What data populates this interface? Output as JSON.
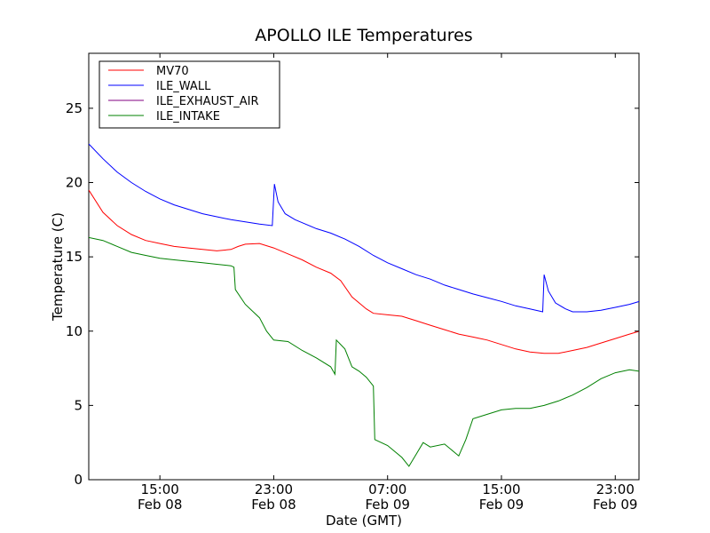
{
  "chart_data": {
    "type": "line",
    "title": "APOLLO ILE Temperatures",
    "xlabel": "Date (GMT)",
    "ylabel": "Temperature (C)",
    "xlim": [
      "Feb 08 10:00",
      "Feb 09 23:40"
    ],
    "ylim": [
      0,
      28.7
    ],
    "grid": false,
    "legend_position": "top-left",
    "x_ticks": [
      {
        "time": "15:00",
        "date": "Feb 08",
        "hours": 15
      },
      {
        "time": "23:00",
        "date": "Feb 08",
        "hours": 23
      },
      {
        "time": "07:00",
        "date": "Feb 09",
        "hours": 31
      },
      {
        "time": "15:00",
        "date": "Feb 09",
        "hours": 39
      },
      {
        "time": "23:00",
        "date": "Feb 09",
        "hours": 47
      }
    ],
    "y_ticks": [
      0,
      5,
      10,
      15,
      20,
      25
    ],
    "series": [
      {
        "name": "MV70",
        "color": "#ff0000",
        "points": [
          [
            10.0,
            19.5
          ],
          [
            11.0,
            18.0
          ],
          [
            12.0,
            17.1
          ],
          [
            13.0,
            16.5
          ],
          [
            14.0,
            16.1
          ],
          [
            15.0,
            15.9
          ],
          [
            16.0,
            15.7
          ],
          [
            17.0,
            15.6
          ],
          [
            18.0,
            15.5
          ],
          [
            19.0,
            15.4
          ],
          [
            20.0,
            15.5
          ],
          [
            20.5,
            15.7
          ],
          [
            21.0,
            15.85
          ],
          [
            22.0,
            15.9
          ],
          [
            23.0,
            15.6
          ],
          [
            24.0,
            15.2
          ],
          [
            25.0,
            14.8
          ],
          [
            26.0,
            14.3
          ],
          [
            27.0,
            13.9
          ],
          [
            27.7,
            13.4
          ],
          [
            28.5,
            12.3
          ],
          [
            29.5,
            11.5
          ],
          [
            30.0,
            11.2
          ],
          [
            31.0,
            11.1
          ],
          [
            32.0,
            11.0
          ],
          [
            33.0,
            10.7
          ],
          [
            34.0,
            10.4
          ],
          [
            35.0,
            10.1
          ],
          [
            36.0,
            9.8
          ],
          [
            37.0,
            9.6
          ],
          [
            38.0,
            9.4
          ],
          [
            39.0,
            9.1
          ],
          [
            40.0,
            8.8
          ],
          [
            41.0,
            8.6
          ],
          [
            42.0,
            8.5
          ],
          [
            43.0,
            8.5
          ],
          [
            44.0,
            8.7
          ],
          [
            45.0,
            8.9
          ],
          [
            46.0,
            9.2
          ],
          [
            47.0,
            9.5
          ],
          [
            48.0,
            9.8
          ],
          [
            48.7,
            10.0
          ]
        ]
      },
      {
        "name": "ILE_WALL",
        "color": "#0000ff",
        "points": [
          [
            10.0,
            22.6
          ],
          [
            11.0,
            21.6
          ],
          [
            12.0,
            20.7
          ],
          [
            13.0,
            20.0
          ],
          [
            14.0,
            19.4
          ],
          [
            15.0,
            18.9
          ],
          [
            16.0,
            18.5
          ],
          [
            17.0,
            18.2
          ],
          [
            18.0,
            17.9
          ],
          [
            19.0,
            17.7
          ],
          [
            20.0,
            17.5
          ],
          [
            21.0,
            17.35
          ],
          [
            22.0,
            17.2
          ],
          [
            22.9,
            17.1
          ],
          [
            23.05,
            19.9
          ],
          [
            23.3,
            18.7
          ],
          [
            23.8,
            17.9
          ],
          [
            24.5,
            17.5
          ],
          [
            25.0,
            17.3
          ],
          [
            26.0,
            16.9
          ],
          [
            27.0,
            16.6
          ],
          [
            28.0,
            16.2
          ],
          [
            29.0,
            15.7
          ],
          [
            30.0,
            15.1
          ],
          [
            31.0,
            14.6
          ],
          [
            32.0,
            14.2
          ],
          [
            33.0,
            13.8
          ],
          [
            34.0,
            13.5
          ],
          [
            35.0,
            13.1
          ],
          [
            36.0,
            12.8
          ],
          [
            37.0,
            12.5
          ],
          [
            38.0,
            12.25
          ],
          [
            39.0,
            12.0
          ],
          [
            40.0,
            11.7
          ],
          [
            41.0,
            11.5
          ],
          [
            41.9,
            11.3
          ],
          [
            42.0,
            13.8
          ],
          [
            42.3,
            12.7
          ],
          [
            42.8,
            11.9
          ],
          [
            43.5,
            11.5
          ],
          [
            44.0,
            11.3
          ],
          [
            45.0,
            11.3
          ],
          [
            46.0,
            11.4
          ],
          [
            47.0,
            11.6
          ],
          [
            48.0,
            11.8
          ],
          [
            48.7,
            12.0
          ]
        ]
      },
      {
        "name": "ILE_EXHAUST_AIR",
        "color": "#800080",
        "points": []
      },
      {
        "name": "ILE_INTAKE",
        "color": "#008000",
        "points": [
          [
            10.0,
            16.3
          ],
          [
            11.0,
            16.1
          ],
          [
            12.0,
            15.7
          ],
          [
            13.0,
            15.3
          ],
          [
            14.0,
            15.1
          ],
          [
            15.0,
            14.9
          ],
          [
            16.0,
            14.8
          ],
          [
            17.0,
            14.7
          ],
          [
            18.0,
            14.6
          ],
          [
            19.0,
            14.5
          ],
          [
            20.0,
            14.4
          ],
          [
            20.2,
            14.3
          ],
          [
            20.3,
            12.8
          ],
          [
            21.0,
            11.8
          ],
          [
            22.0,
            10.9
          ],
          [
            22.5,
            10.0
          ],
          [
            23.0,
            9.4
          ],
          [
            24.0,
            9.3
          ],
          [
            25.0,
            8.7
          ],
          [
            26.0,
            8.2
          ],
          [
            27.0,
            7.6
          ],
          [
            27.3,
            7.1
          ],
          [
            27.4,
            9.4
          ],
          [
            28.0,
            8.8
          ],
          [
            28.5,
            7.6
          ],
          [
            29.0,
            7.3
          ],
          [
            29.5,
            6.9
          ],
          [
            30.0,
            6.3
          ],
          [
            30.1,
            2.7
          ],
          [
            31.0,
            2.3
          ],
          [
            32.0,
            1.5
          ],
          [
            32.5,
            0.9
          ],
          [
            33.0,
            1.7
          ],
          [
            33.5,
            2.5
          ],
          [
            34.0,
            2.2
          ],
          [
            35.0,
            2.4
          ],
          [
            36.0,
            1.6
          ],
          [
            36.5,
            2.7
          ],
          [
            37.0,
            4.1
          ],
          [
            38.0,
            4.4
          ],
          [
            39.0,
            4.7
          ],
          [
            40.0,
            4.8
          ],
          [
            41.0,
            4.8
          ],
          [
            42.0,
            5.0
          ],
          [
            43.0,
            5.3
          ],
          [
            44.0,
            5.7
          ],
          [
            45.0,
            6.2
          ],
          [
            46.0,
            6.8
          ],
          [
            47.0,
            7.2
          ],
          [
            48.0,
            7.4
          ],
          [
            48.7,
            7.3
          ]
        ]
      }
    ]
  }
}
